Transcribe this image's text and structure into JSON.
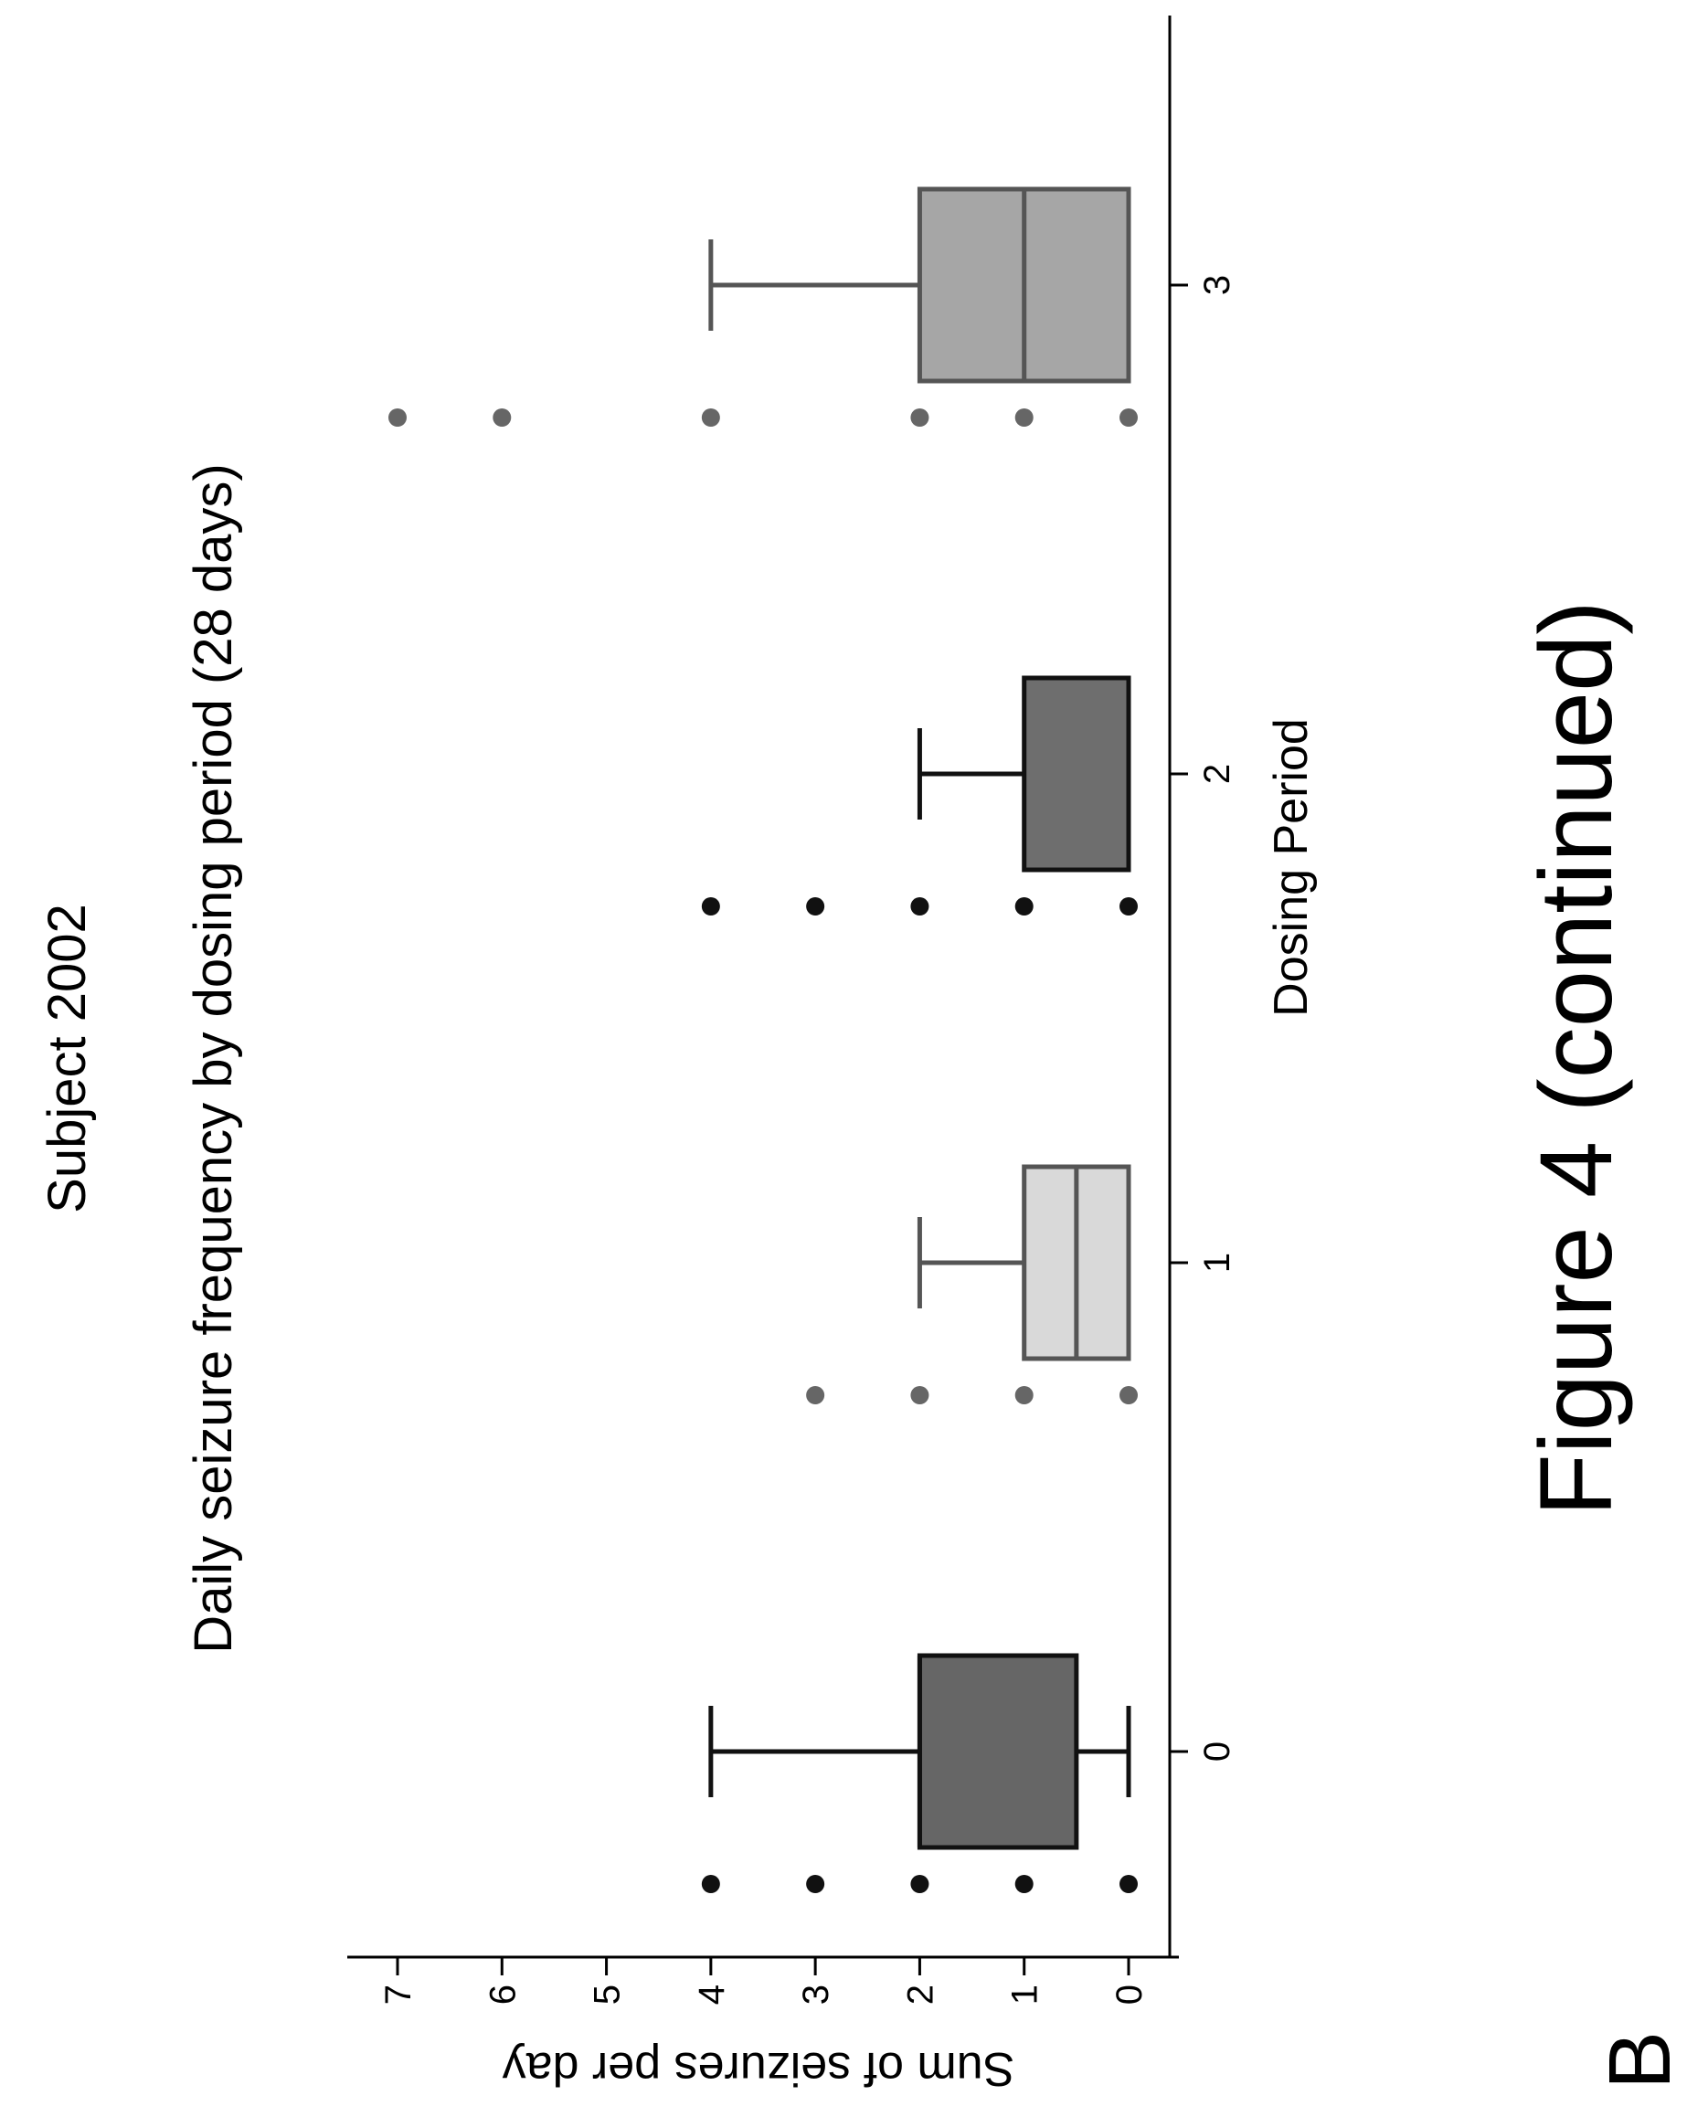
{
  "panel_label": "B",
  "subject_label": "Subject 2002",
  "figure_caption": "Figure 4 (continued)",
  "chart_data": {
    "type": "box",
    "title": "Daily seizure frequency by dosing period (28 days)",
    "xlabel": "Dosing Period",
    "ylabel": "Sum of seizures per day",
    "ylim": [
      0,
      7
    ],
    "yticks": [
      "0",
      "1",
      "2",
      "3",
      "4",
      "5",
      "6",
      "7"
    ],
    "categories": [
      "0",
      "1",
      "2",
      "3"
    ],
    "grid": false,
    "legend": "none",
    "boxes": [
      {
        "category": "0",
        "q1": 0.5,
        "median": 2,
        "q3": 2,
        "whisker_low": 0,
        "whisker_high": 4,
        "outliers": [
          0,
          1,
          2,
          3,
          4
        ],
        "color": "#666666"
      },
      {
        "category": "1",
        "q1": 0,
        "median": 0.5,
        "q3": 1,
        "whisker_low": 0,
        "whisker_high": 2,
        "outliers": [
          0,
          1,
          2,
          3
        ],
        "color": "#d9d9d9"
      },
      {
        "category": "2",
        "q1": 0,
        "median": 0,
        "q3": 1,
        "whisker_low": 0,
        "whisker_high": 2,
        "outliers": [
          0,
          1,
          2,
          3,
          4
        ],
        "color": "#6e6e6e"
      },
      {
        "category": "3",
        "q1": 0,
        "median": 1,
        "q3": 2,
        "whisker_low": 0,
        "whisker_high": 4,
        "outliers": [
          0,
          1,
          2,
          4,
          6,
          7
        ],
        "color": "#a6a6a6"
      }
    ]
  }
}
